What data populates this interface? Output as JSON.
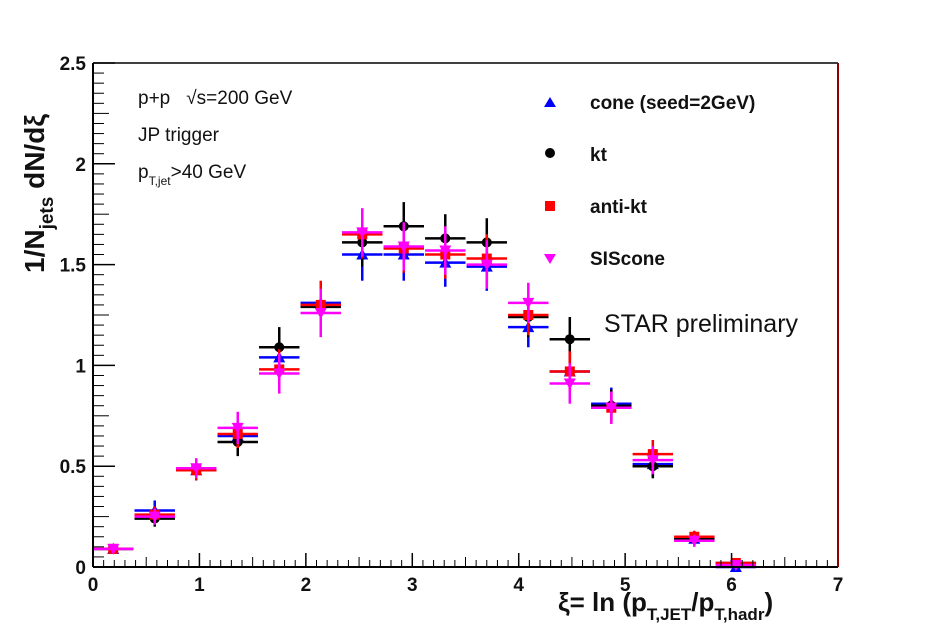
{
  "chart_data": {
    "type": "scatter",
    "title": "",
    "xlabel": {
      "main": "ξ= ln (p",
      "sub1": "T,JET",
      "mid": "/p",
      "sub2": "T,hadr",
      "end": ")"
    },
    "ylabel": {
      "main": "1/N",
      "sub": "jets",
      "end": " dN/dξ"
    },
    "xlim": [
      0,
      7
    ],
    "ylim": [
      0,
      2.5
    ],
    "x_ticks": [
      "0",
      "1",
      "2",
      "3",
      "4",
      "5",
      "6",
      "7"
    ],
    "y_ticks": [
      "0",
      "0.5",
      "1",
      "1.5",
      "2",
      "2.5"
    ],
    "annotations": {
      "line1_a": "p+p",
      "line1_b": "√s=200 GeV",
      "line2": "JP trigger",
      "line3_main": "p",
      "line3_sub": "T,jet",
      "line3_end": ">40 GeV",
      "preliminary": "STAR preliminary"
    },
    "bin_half_width": 0.19,
    "series": [
      {
        "name": "cone (seed=2GeV)",
        "color": "#0000ff",
        "marker": "triangle-up",
        "points": [
          {
            "x": 0.19,
            "y": 0.09,
            "err": 0.02
          },
          {
            "x": 0.58,
            "y": 0.28,
            "err": 0.05
          },
          {
            "x": 0.97,
            "y": 0.48,
            "err": 0.05
          },
          {
            "x": 1.36,
            "y": 0.65,
            "err": 0.07
          },
          {
            "x": 1.75,
            "y": 1.04,
            "err": 0.09
          },
          {
            "x": 2.14,
            "y": 1.31,
            "err": 0.1
          },
          {
            "x": 2.53,
            "y": 1.55,
            "err": 0.13
          },
          {
            "x": 2.92,
            "y": 1.55,
            "err": 0.13
          },
          {
            "x": 3.31,
            "y": 1.51,
            "err": 0.12
          },
          {
            "x": 3.7,
            "y": 1.49,
            "err": 0.12
          },
          {
            "x": 4.09,
            "y": 1.19,
            "err": 0.1
          },
          {
            "x": 4.48,
            "y": 0.97,
            "err": 0.09
          },
          {
            "x": 4.87,
            "y": 0.81,
            "err": 0.08
          },
          {
            "x": 5.26,
            "y": 0.51,
            "err": 0.06
          },
          {
            "x": 5.65,
            "y": 0.14,
            "err": 0.03
          },
          {
            "x": 6.04,
            "y": 0.0,
            "err": 0.01
          }
        ]
      },
      {
        "name": "kt",
        "color": "#000000",
        "marker": "circle",
        "points": [
          {
            "x": 0.19,
            "y": 0.09,
            "err": 0.02
          },
          {
            "x": 0.58,
            "y": 0.24,
            "err": 0.04
          },
          {
            "x": 0.97,
            "y": 0.48,
            "err": 0.05
          },
          {
            "x": 1.36,
            "y": 0.62,
            "err": 0.07
          },
          {
            "x": 1.75,
            "y": 1.09,
            "err": 0.1
          },
          {
            "x": 2.14,
            "y": 1.29,
            "err": 0.11
          },
          {
            "x": 2.53,
            "y": 1.61,
            "err": 0.12
          },
          {
            "x": 2.92,
            "y": 1.69,
            "err": 0.12
          },
          {
            "x": 3.31,
            "y": 1.63,
            "err": 0.12
          },
          {
            "x": 3.7,
            "y": 1.61,
            "err": 0.12
          },
          {
            "x": 4.09,
            "y": 1.24,
            "err": 0.1
          },
          {
            "x": 4.48,
            "y": 1.13,
            "err": 0.11
          },
          {
            "x": 4.87,
            "y": 0.8,
            "err": 0.08
          },
          {
            "x": 5.26,
            "y": 0.5,
            "err": 0.06
          },
          {
            "x": 5.65,
            "y": 0.14,
            "err": 0.03
          },
          {
            "x": 6.04,
            "y": 0.02,
            "err": 0.01
          }
        ]
      },
      {
        "name": "anti-kt",
        "color": "#ff0000",
        "marker": "square",
        "points": [
          {
            "x": 0.19,
            "y": 0.09,
            "err": 0.02
          },
          {
            "x": 0.58,
            "y": 0.26,
            "err": 0.04
          },
          {
            "x": 0.97,
            "y": 0.48,
            "err": 0.05
          },
          {
            "x": 1.36,
            "y": 0.66,
            "err": 0.07
          },
          {
            "x": 1.75,
            "y": 0.98,
            "err": 0.1
          },
          {
            "x": 2.14,
            "y": 1.3,
            "err": 0.12
          },
          {
            "x": 2.53,
            "y": 1.65,
            "err": 0.12
          },
          {
            "x": 2.92,
            "y": 1.58,
            "err": 0.12
          },
          {
            "x": 3.31,
            "y": 1.55,
            "err": 0.12
          },
          {
            "x": 3.7,
            "y": 1.53,
            "err": 0.12
          },
          {
            "x": 4.09,
            "y": 1.25,
            "err": 0.1
          },
          {
            "x": 4.48,
            "y": 0.97,
            "err": 0.1
          },
          {
            "x": 4.87,
            "y": 0.79,
            "err": 0.08
          },
          {
            "x": 5.26,
            "y": 0.56,
            "err": 0.07
          },
          {
            "x": 5.65,
            "y": 0.15,
            "err": 0.03
          },
          {
            "x": 6.04,
            "y": 0.02,
            "err": 0.01
          }
        ]
      },
      {
        "name": "SIScone",
        "color": "#ff00ff",
        "marker": "triangle-down",
        "points": [
          {
            "x": 0.19,
            "y": 0.09,
            "err": 0.02
          },
          {
            "x": 0.58,
            "y": 0.25,
            "err": 0.04
          },
          {
            "x": 0.97,
            "y": 0.49,
            "err": 0.05
          },
          {
            "x": 1.36,
            "y": 0.69,
            "err": 0.08
          },
          {
            "x": 1.75,
            "y": 0.96,
            "err": 0.1
          },
          {
            "x": 2.14,
            "y": 1.26,
            "err": 0.12
          },
          {
            "x": 2.53,
            "y": 1.66,
            "err": 0.12
          },
          {
            "x": 2.92,
            "y": 1.59,
            "err": 0.12
          },
          {
            "x": 3.31,
            "y": 1.57,
            "err": 0.12
          },
          {
            "x": 3.7,
            "y": 1.5,
            "err": 0.12
          },
          {
            "x": 4.09,
            "y": 1.31,
            "err": 0.1
          },
          {
            "x": 4.48,
            "y": 0.91,
            "err": 0.1
          },
          {
            "x": 4.87,
            "y": 0.79,
            "err": 0.08
          },
          {
            "x": 5.26,
            "y": 0.53,
            "err": 0.07
          },
          {
            "x": 5.65,
            "y": 0.13,
            "err": 0.03
          },
          {
            "x": 6.04,
            "y": 0.01,
            "err": 0.01
          }
        ]
      }
    ]
  }
}
